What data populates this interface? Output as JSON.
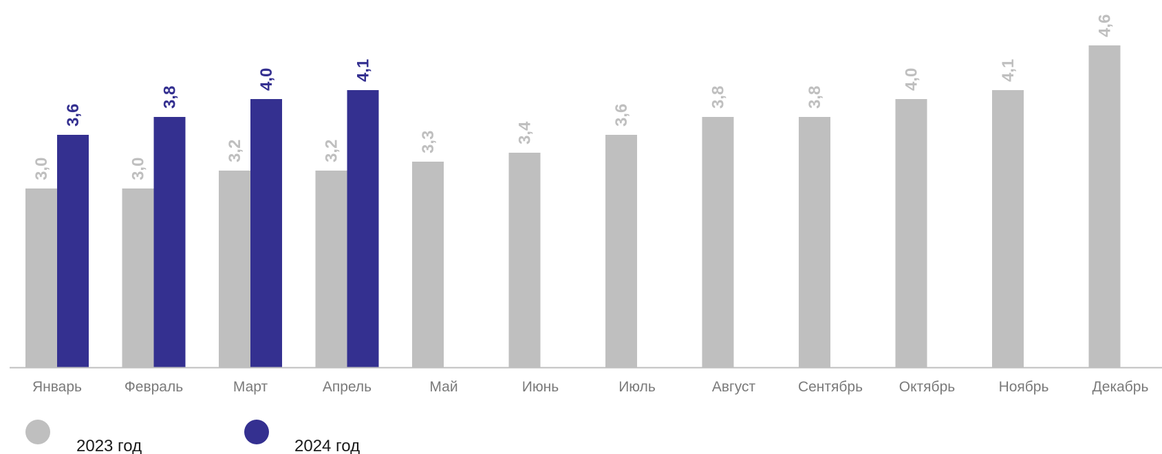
{
  "chart_data": {
    "type": "bar",
    "categories": [
      "Январь",
      "Февраль",
      "Март",
      "Апрель",
      "Май",
      "Июнь",
      "Июль",
      "Август",
      "Сентябрь",
      "Октябрь",
      "Ноябрь",
      "Декабрь"
    ],
    "series": [
      {
        "name": "2023 год",
        "color": "#bfbfbf",
        "label_color": "#bfbfbf",
        "values": [
          3.0,
          3.0,
          3.2,
          3.2,
          3.3,
          3.4,
          3.6,
          3.8,
          3.8,
          4.0,
          4.1,
          4.6
        ],
        "labels": [
          "3,0",
          "3,0",
          "3,2",
          "3,2",
          "3,3",
          "3,4",
          "3,6",
          "3,8",
          "3,8",
          "4,0",
          "4,1",
          "4,6"
        ]
      },
      {
        "name": "2024 год",
        "color": "#343090",
        "label_color": "#343090",
        "values": [
          3.6,
          3.8,
          4.0,
          4.1,
          null,
          null,
          null,
          null,
          null,
          null,
          null,
          null
        ],
        "labels": [
          "3,6",
          "3,8",
          "4,0",
          "4,1",
          null,
          null,
          null,
          null,
          null,
          null,
          null,
          null
        ]
      }
    ],
    "title": "",
    "xlabel": "",
    "ylabel": "",
    "ylim": [
      1.0,
      5.1
    ],
    "grid": false,
    "legend_position": "bottom-left",
    "axis_color": "#bfbfbf"
  }
}
